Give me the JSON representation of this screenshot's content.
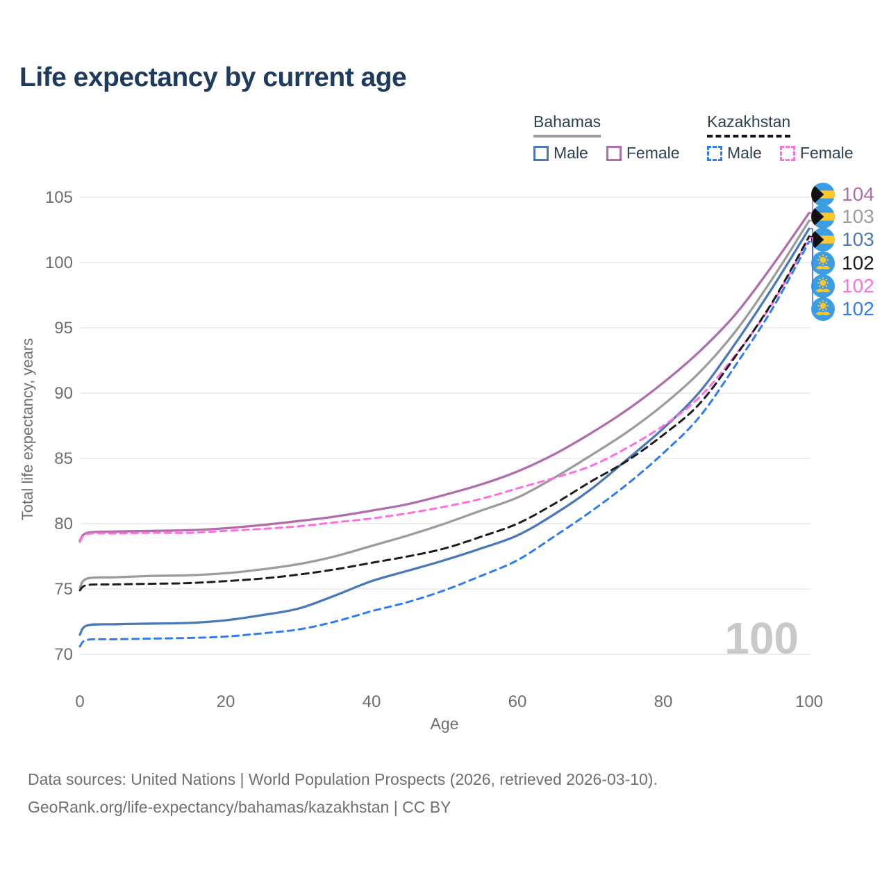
{
  "title": "Life expectancy by current age",
  "legend": {
    "groups": [
      {
        "name": "Bahamas",
        "line_style": "solid",
        "items": [
          {
            "label": "Male",
            "color": "#4a79b8",
            "dashed": false
          },
          {
            "label": "Female",
            "color": "#b06dac",
            "dashed": false
          }
        ]
      },
      {
        "name": "Kazakhstan",
        "line_style": "dashed",
        "items": [
          {
            "label": "Male",
            "color": "#2e7df0",
            "dashed": true
          },
          {
            "label": "Female",
            "color": "#ff6fdf",
            "dashed": true
          }
        ]
      }
    ]
  },
  "y_axis": {
    "label": "Total life expectancy, years",
    "ticks": [
      105,
      100,
      95,
      90,
      85,
      80,
      75,
      70
    ]
  },
  "x_axis": {
    "label": "Age",
    "ticks": [
      0,
      20,
      40,
      60,
      80,
      100
    ]
  },
  "watermark": "100",
  "footer": {
    "line1": "Data sources: United Nations | World Population Prospects (2026, retrieved 2026-03-10).",
    "line2": "GeoRank.org/life-expectancy/bahamas/kazakhstan | CC BY"
  },
  "chart_data": {
    "type": "line",
    "title": "Life expectancy by current age",
    "xlabel": "Age",
    "ylabel": "Total life expectancy, years",
    "xlim": [
      0,
      100
    ],
    "ylim": [
      70,
      105
    ],
    "grid": "horizontal",
    "legend_position": "top-right",
    "x": [
      0,
      1,
      5,
      10,
      15,
      20,
      25,
      30,
      35,
      40,
      45,
      50,
      55,
      60,
      65,
      70,
      75,
      80,
      85,
      90,
      95,
      100
    ],
    "series": [
      {
        "name": "Bahamas Female",
        "country": "Bahamas",
        "sex": "Female",
        "color": "#b06dac",
        "dash": null,
        "flag": "bahamas",
        "end_label": "104",
        "flag_row": 0,
        "values": [
          78.7,
          79.3,
          79.4,
          79.45,
          79.5,
          79.65,
          79.9,
          80.2,
          80.55,
          81.0,
          81.5,
          82.2,
          83.0,
          84.0,
          85.3,
          86.9,
          88.7,
          90.8,
          93.2,
          96.1,
          99.8,
          103.8
        ]
      },
      {
        "name": "Bahamas Both sexes",
        "country": "Bahamas",
        "sex": "Both",
        "color": "#9c9c9c",
        "dash": null,
        "flag": "bahamas",
        "end_label": "103",
        "flag_row": 1,
        "values": [
          75.1,
          75.8,
          75.9,
          76.0,
          76.05,
          76.2,
          76.5,
          76.9,
          77.5,
          78.3,
          79.1,
          80.0,
          81.0,
          82.0,
          83.5,
          85.2,
          87.0,
          89.1,
          91.6,
          94.8,
          98.8,
          103.2
        ]
      },
      {
        "name": "Bahamas Male",
        "country": "Bahamas",
        "sex": "Male",
        "color": "#4a79b8",
        "dash": null,
        "flag": "bahamas",
        "end_label": "103",
        "flag_row": 2,
        "values": [
          71.5,
          72.2,
          72.3,
          72.35,
          72.4,
          72.6,
          73.0,
          73.5,
          74.5,
          75.6,
          76.4,
          77.2,
          78.1,
          79.1,
          80.7,
          82.6,
          84.9,
          87.3,
          90.1,
          93.9,
          98.1,
          102.6
        ]
      },
      {
        "name": "Kazakhstan Both sexes",
        "country": "Kazakhstan",
        "sex": "Both",
        "color": "#1c1c1c",
        "dash": [
          10,
          7
        ],
        "flag": "kazakhstan",
        "end_label": "102",
        "flag_row": 3,
        "values": [
          74.9,
          75.3,
          75.35,
          75.4,
          75.45,
          75.6,
          75.8,
          76.1,
          76.5,
          77.0,
          77.5,
          78.1,
          79.0,
          80.0,
          81.5,
          83.2,
          84.8,
          86.8,
          89.2,
          92.9,
          97.0,
          102.0
        ]
      },
      {
        "name": "Kazakhstan Female",
        "country": "Kazakhstan",
        "sex": "Female",
        "color": "#ff6fdf",
        "dash": [
          9,
          7
        ],
        "flag": "kazakhstan",
        "end_label": "102",
        "flag_row": 4,
        "values": [
          78.6,
          79.2,
          79.25,
          79.3,
          79.3,
          79.45,
          79.6,
          79.8,
          80.1,
          80.4,
          80.8,
          81.3,
          81.9,
          82.7,
          83.5,
          84.4,
          85.8,
          87.5,
          89.7,
          93.0,
          96.9,
          101.9
        ]
      },
      {
        "name": "Kazakhstan Male",
        "country": "Kazakhstan",
        "sex": "Male",
        "color": "#2e7df0",
        "dash": [
          9,
          7
        ],
        "flag": "kazakhstan",
        "end_label": "102",
        "flag_row": 5,
        "values": [
          70.6,
          71.1,
          71.15,
          71.2,
          71.25,
          71.35,
          71.6,
          71.9,
          72.5,
          73.3,
          74.0,
          74.9,
          76.0,
          77.2,
          79.0,
          80.9,
          83.0,
          85.4,
          88.2,
          92.2,
          96.5,
          101.6
        ]
      }
    ]
  },
  "colors": {
    "title": "#1e3a5c",
    "axis_text": "#6e6e6e",
    "gridline": "#e9e9e9",
    "watermark": "#c9c9c9",
    "flag_gold": "#ffc72c",
    "flag_blue": "#3b9ee4",
    "legend_text": "#2e3f54"
  }
}
